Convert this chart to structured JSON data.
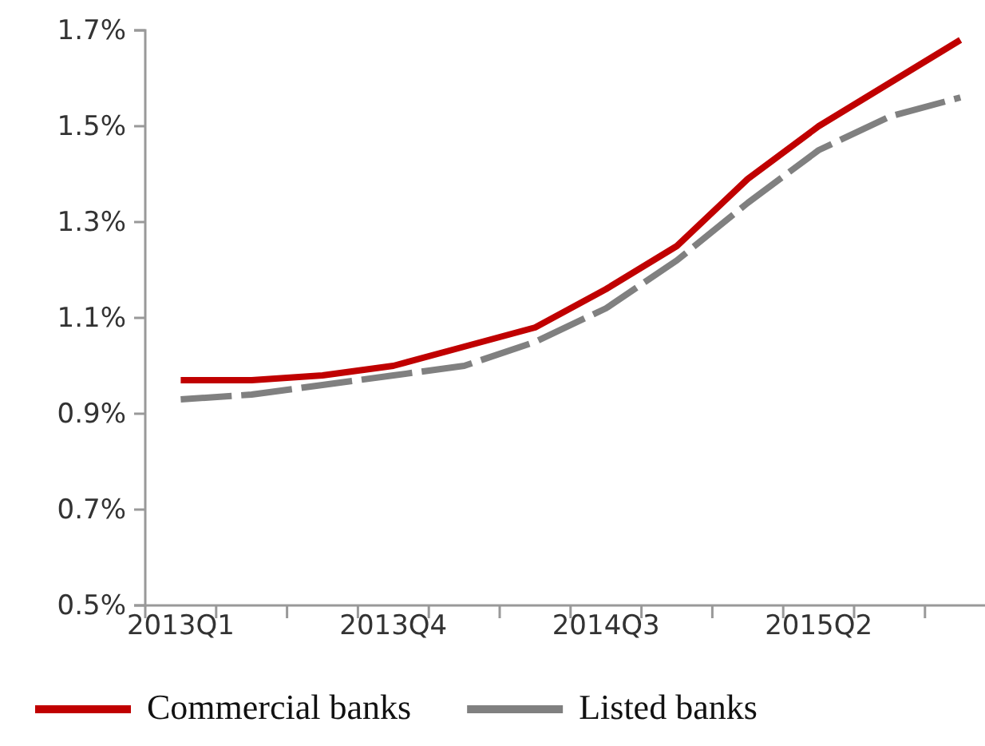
{
  "chart_data": {
    "type": "line",
    "categories": [
      "2013Q1",
      null,
      null,
      "2013Q4",
      null,
      null,
      "2014Q3",
      null,
      null,
      "2015Q2",
      null,
      null
    ],
    "series": [
      {
        "name": "Commercial banks",
        "color": "#c00000",
        "line_style": "solid",
        "values": [
          0.97,
          0.97,
          0.98,
          1.0,
          1.04,
          1.08,
          1.16,
          1.25,
          1.39,
          1.5,
          1.59,
          1.68
        ]
      },
      {
        "name": "Listed banks",
        "color": "#808080",
        "line_style": "dashed",
        "values": [
          0.93,
          0.94,
          0.96,
          0.98,
          1.0,
          1.05,
          1.12,
          1.22,
          1.34,
          1.45,
          1.52,
          1.56
        ]
      }
    ],
    "ylim": [
      0.5,
      1.7
    ],
    "yticks": [
      {
        "value": 0.5,
        "label": "0.5%"
      },
      {
        "value": 0.7,
        "label": "0.7%"
      },
      {
        "value": 0.9,
        "label": "0.9%"
      },
      {
        "value": 1.1,
        "label": "1.1%"
      },
      {
        "value": 1.3,
        "label": "1.3%"
      },
      {
        "value": 1.5,
        "label": "1.5%"
      },
      {
        "value": 1.7,
        "label": "1.7%"
      }
    ],
    "grid": false,
    "legend": "bottom",
    "marker": "none"
  }
}
